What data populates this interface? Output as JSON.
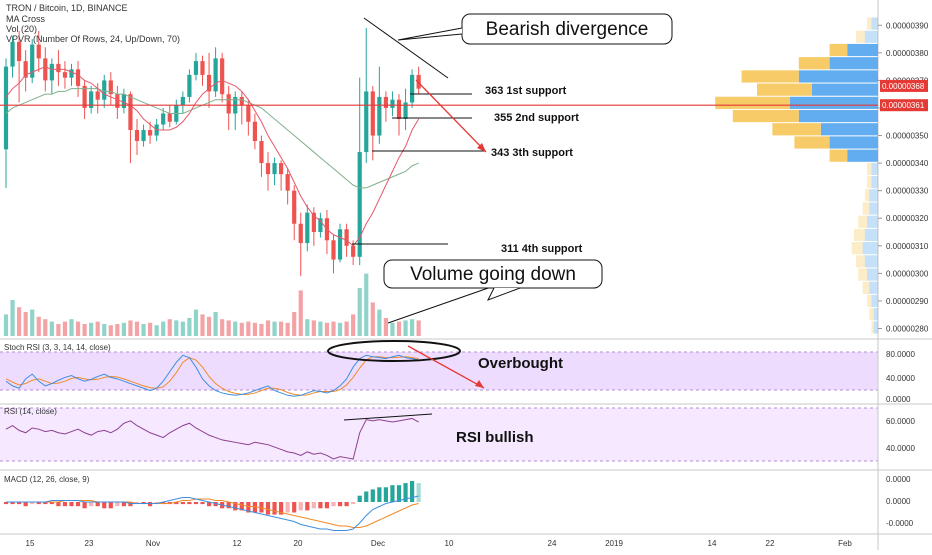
{
  "header": {
    "title": "TRON / Bitcoin, 1D, BINANCE",
    "indicators": [
      "MA Cross",
      "Vol (20)",
      "VPVR (Number Of Rows, 24, Up/Down, 70)"
    ]
  },
  "annotations": {
    "bearish": "Bearish divergence",
    "volume": "Volume going down",
    "overbought": "Overbought",
    "rsi_bullish": "RSI bullish",
    "supports": [
      {
        "label": "363 1st support",
        "value": 3.63e-06
      },
      {
        "label": "355 2nd support",
        "value": 3.55e-06
      },
      {
        "label": "343 3th support",
        "value": 3.43e-06
      },
      {
        "label": "311 4th support",
        "value": 3.11e-06
      }
    ]
  },
  "colors": {
    "up": "#26a69a",
    "down": "#ef5350",
    "vol_up": "#8fd3c9",
    "vol_down": "#f3a3a6",
    "ma_fast": "#e5586a",
    "ma_slow": "#7fb08c",
    "hline": "#e53935",
    "stoch_k": "#3d8fe0",
    "stoch_d": "#f08a28",
    "rsi": "#8e3f8e",
    "band": "#eedcff"
  },
  "price_axis": {
    "ticks": [
      "0.00000390",
      "0.00000380",
      "0.00000370",
      "0.00000360",
      "0.00000350",
      "0.00000340",
      "0.00000330",
      "0.00000320",
      "0.00000310",
      "0.00000300",
      "0.00000290",
      "0.00000280"
    ],
    "tag_high": "0.00000368",
    "tag_line": "0.00000361"
  },
  "stoch_panel": {
    "label": "Stoch RSI (3, 3, 14, 14, close)",
    "ticks": [
      "80.0000",
      "40.0000",
      "0.0000"
    ]
  },
  "rsi_panel": {
    "label": "RSI (14, close)",
    "ticks": [
      "60.0000",
      "40.0000"
    ]
  },
  "macd_panel": {
    "label": "MACD (12, 26, close, 9)",
    "ticks": [
      "0.0000",
      "0.0000",
      "-0.0000"
    ]
  },
  "time_axis": [
    "15",
    "23",
    "Nov",
    "12",
    "20",
    "Dec",
    "10",
    "24",
    "2019",
    "14",
    "22",
    "Feb"
  ],
  "chart_data": {
    "type": "candlestick",
    "ylim": [
      2.78e-06,
      3.93e-06
    ],
    "horizontal_line": 3.61e-06,
    "candles": [
      [
        3.45e-06,
        3.75e-06,
        3.78e-06,
        3.31e-06
      ],
      [
        3.75e-06,
        3.84e-06,
        3.86e-06,
        3.71e-06
      ],
      [
        3.84e-06,
        3.77e-06,
        3.88e-06,
        3.62e-06
      ],
      [
        3.77e-06,
        3.71e-06,
        3.81e-06,
        3.66e-06
      ],
      [
        3.71e-06,
        3.83e-06,
        3.85e-06,
        3.69e-06
      ],
      [
        3.83e-06,
        3.78e-06,
        3.88e-06,
        3.73e-06
      ],
      [
        3.78e-06,
        3.7e-06,
        3.82e-06,
        3.66e-06
      ],
      [
        3.7e-06,
        3.76e-06,
        3.78e-06,
        3.65e-06
      ],
      [
        3.76e-06,
        3.73e-06,
        3.81e-06,
        3.68e-06
      ],
      [
        3.73e-06,
        3.71e-06,
        3.77e-06,
        3.67e-06
      ],
      [
        3.71e-06,
        3.74e-06,
        3.76e-06,
        3.68e-06
      ],
      [
        3.74e-06,
        3.68e-06,
        3.77e-06,
        3.64e-06
      ],
      [
        3.68e-06,
        3.6e-06,
        3.7e-06,
        3.56e-06
      ],
      [
        3.6e-06,
        3.66e-06,
        3.68e-06,
        3.58e-06
      ],
      [
        3.66e-06,
        3.63e-06,
        3.69e-06,
        3.58e-06
      ],
      [
        3.63e-06,
        3.7e-06,
        3.72e-06,
        3.6e-06
      ],
      [
        3.7e-06,
        3.65e-06,
        3.73e-06,
        3.61e-06
      ],
      [
        3.65e-06,
        3.6e-06,
        3.68e-06,
        3.56e-06
      ],
      [
        3.6e-06,
        3.65e-06,
        3.67e-06,
        3.58e-06
      ],
      [
        3.65e-06,
        3.52e-06,
        3.66e-06,
        3.4e-06
      ],
      [
        3.52e-06,
        3.48e-06,
        3.56e-06,
        3.43e-06
      ],
      [
        3.48e-06,
        3.52e-06,
        3.54e-06,
        3.46e-06
      ],
      [
        3.52e-06,
        3.5e-06,
        3.55e-06,
        3.47e-06
      ],
      [
        3.5e-06,
        3.54e-06,
        3.56e-06,
        3.48e-06
      ],
      [
        3.54e-06,
        3.58e-06,
        3.6e-06,
        3.52e-06
      ],
      [
        3.58e-06,
        3.55e-06,
        3.61e-06,
        3.53e-06
      ],
      [
        3.55e-06,
        3.61e-06,
        3.63e-06,
        3.54e-06
      ],
      [
        3.61e-06,
        3.64e-06,
        3.66e-06,
        3.58e-06
      ],
      [
        3.64e-06,
        3.72e-06,
        3.74e-06,
        3.62e-06
      ],
      [
        3.72e-06,
        3.77e-06,
        3.8e-06,
        3.7e-06
      ],
      [
        3.77e-06,
        3.72e-06,
        3.79e-06,
        3.68e-06
      ],
      [
        3.72e-06,
        3.66e-06,
        3.8e-06,
        3.6e-06
      ],
      [
        3.66e-06,
        3.78e-06,
        3.82e-06,
        3.64e-06
      ],
      [
        3.78e-06,
        3.65e-06,
        3.8e-06,
        3.62e-06
      ],
      [
        3.65e-06,
        3.58e-06,
        3.68e-06,
        3.52e-06
      ],
      [
        3.58e-06,
        3.64e-06,
        3.66e-06,
        3.52e-06
      ],
      [
        3.64e-06,
        3.61e-06,
        3.66e-06,
        3.54e-06
      ],
      [
        3.61e-06,
        3.55e-06,
        3.63e-06,
        3.5e-06
      ],
      [
        3.55e-06,
        3.48e-06,
        3.58e-06,
        3.45e-06
      ],
      [
        3.48e-06,
        3.4e-06,
        3.5e-06,
        3.35e-06
      ],
      [
        3.4e-06,
        3.36e-06,
        3.44e-06,
        3.3e-06
      ],
      [
        3.36e-06,
        3.4e-06,
        3.42e-06,
        3.32e-06
      ],
      [
        3.4e-06,
        3.36e-06,
        3.41e-06,
        3.3e-06
      ],
      [
        3.36e-06,
        3.3e-06,
        3.38e-06,
        3.25e-06
      ],
      [
        3.3e-06,
        3.18e-06,
        3.32e-06,
        3.12e-06
      ],
      [
        3.18e-06,
        3.11e-06,
        3.22e-06,
        2.99e-06
      ],
      [
        3.11e-06,
        3.22e-06,
        3.25e-06,
        3.08e-06
      ],
      [
        3.22e-06,
        3.15e-06,
        3.24e-06,
        3.1e-06
      ],
      [
        3.15e-06,
        3.2e-06,
        3.22e-06,
        3.13e-06
      ],
      [
        3.2e-06,
        3.12e-06,
        3.23e-06,
        3.07e-06
      ],
      [
        3.12e-06,
        3.05e-06,
        3.14e-06,
        3e-06
      ],
      [
        3.05e-06,
        3.16e-06,
        3.18e-06,
        3.04e-06
      ],
      [
        3.16e-06,
        3.1e-06,
        3.18e-06,
        3.06e-06
      ],
      [
        3.1e-06,
        3.06e-06,
        3.12e-06,
        3.03e-06
      ],
      [
        3.06e-06,
        3.44e-06,
        3.71e-06,
        3.03e-06
      ],
      [
        3.44e-06,
        3.66e-06,
        3.89e-06,
        3.4e-06
      ],
      [
        3.66e-06,
        3.5e-06,
        3.68e-06,
        3.41e-06
      ],
      [
        3.5e-06,
        3.64e-06,
        3.75e-06,
        3.47e-06
      ],
      [
        3.64e-06,
        3.6e-06,
        3.66e-06,
        3.55e-06
      ],
      [
        3.6e-06,
        3.63e-06,
        3.66e-06,
        3.57e-06
      ],
      [
        3.63e-06,
        3.56e-06,
        3.65e-06,
        3.5e-06
      ],
      [
        3.56e-06,
        3.62e-06,
        3.67e-06,
        3.52e-06
      ],
      [
        3.62e-06,
        3.72e-06,
        3.74e-06,
        3.6e-06
      ],
      [
        3.72e-06,
        3.67e-06,
        3.75e-06,
        3.65e-06
      ]
    ],
    "volume": [
      18,
      30,
      24,
      20,
      22,
      16,
      14,
      12,
      10,
      12,
      14,
      12,
      10,
      11,
      12,
      10,
      9,
      10,
      11,
      13,
      12,
      10,
      11,
      9,
      12,
      14,
      13,
      12,
      15,
      22,
      18,
      16,
      20,
      14,
      13,
      12,
      11,
      12,
      11,
      10,
      13,
      12,
      12,
      11,
      20,
      38,
      14,
      13,
      12,
      11,
      12,
      11,
      12,
      18,
      40,
      52,
      28,
      22,
      15,
      11,
      12,
      13,
      14,
      13
    ],
    "ma_fast": [
      3.64e-06,
      3.67e-06,
      3.69e-06,
      3.72e-06,
      3.73e-06,
      3.74e-06,
      3.75e-06,
      3.74e-06,
      3.74e-06,
      3.74e-06,
      3.73e-06,
      3.72e-06,
      3.7e-06,
      3.69e-06,
      3.67e-06,
      3.65e-06,
      3.64e-06,
      3.63e-06,
      3.62e-06,
      3.61e-06,
      3.59e-06,
      3.56e-06,
      3.54e-06,
      3.52e-06,
      3.52e-06,
      3.52e-06,
      3.53e-06,
      3.55e-06,
      3.58e-06,
      3.62e-06,
      3.65e-06,
      3.67e-06,
      3.69e-06,
      3.7e-06,
      3.69e-06,
      3.68e-06,
      3.66e-06,
      3.63e-06,
      3.59e-06,
      3.55e-06,
      3.5e-06,
      3.46e-06,
      3.42e-06,
      3.38e-06,
      3.33e-06,
      3.28e-06,
      3.24e-06,
      3.21e-06,
      3.19e-06,
      3.16e-06,
      3.14e-06,
      3.13e-06,
      3.12e-06,
      3.1e-06,
      3.13e-06,
      3.18e-06,
      3.22e-06,
      3.27e-06,
      3.32e-06,
      3.37e-06,
      3.42e-06,
      3.46e-06,
      3.52e-06,
      3.56e-06
    ],
    "ma_slow": [
      3.58e-06,
      3.6e-06,
      3.61e-06,
      3.62e-06,
      3.63e-06,
      3.64e-06,
      3.65e-06,
      3.65e-06,
      3.66e-06,
      3.66e-06,
      3.67e-06,
      3.67e-06,
      3.67e-06,
      3.67e-06,
      3.67e-06,
      3.66e-06,
      3.66e-06,
      3.65e-06,
      3.65e-06,
      3.64e-06,
      3.63e-06,
      3.62e-06,
      3.61e-06,
      3.6e-06,
      3.59e-06,
      3.58e-06,
      3.58e-06,
      3.58e-06,
      3.59e-06,
      3.6e-06,
      3.61e-06,
      3.62e-06,
      3.63e-06,
      3.63e-06,
      3.63e-06,
      3.63e-06,
      3.63e-06,
      3.62e-06,
      3.61e-06,
      3.6e-06,
      3.58e-06,
      3.56e-06,
      3.54e-06,
      3.52e-06,
      3.5e-06,
      3.48e-06,
      3.46e-06,
      3.44e-06,
      3.42e-06,
      3.4e-06,
      3.38e-06,
      3.36e-06,
      3.34e-06,
      3.32e-06,
      3.31e-06,
      3.31e-06,
      3.32e-06,
      3.33e-06,
      3.34e-06,
      3.35e-06,
      3.36e-06,
      3.37e-06,
      3.39e-06,
      3.4e-06
    ],
    "stoch_k": [
      40,
      30,
      25,
      45,
      55,
      40,
      30,
      35,
      42,
      48,
      52,
      45,
      40,
      44,
      50,
      55,
      48,
      45,
      40,
      35,
      30,
      25,
      20,
      25,
      40,
      60,
      80,
      95,
      90,
      70,
      45,
      30,
      20,
      15,
      12,
      10,
      12,
      15,
      20,
      25,
      30,
      20,
      15,
      10,
      8,
      10,
      15,
      20,
      18,
      15,
      20,
      30,
      45,
      70,
      88,
      95,
      92,
      90,
      88,
      92,
      95,
      90,
      88,
      85
    ],
    "stoch_d": [
      45,
      38,
      32,
      35,
      42,
      45,
      40,
      35,
      36,
      40,
      46,
      48,
      45,
      43,
      44,
      48,
      50,
      49,
      45,
      40,
      35,
      30,
      26,
      25,
      28,
      40,
      58,
      80,
      90,
      85,
      70,
      50,
      35,
      25,
      18,
      14,
      12,
      12,
      15,
      20,
      25,
      25,
      22,
      16,
      12,
      10,
      11,
      15,
      18,
      18,
      18,
      22,
      32,
      48,
      68,
      85,
      92,
      92,
      90,
      90,
      91,
      92,
      90,
      88
    ],
    "rsi": [
      55,
      58,
      54,
      52,
      56,
      55,
      53,
      54,
      52,
      51,
      53,
      55,
      52,
      50,
      53,
      54,
      52,
      55,
      60,
      62,
      58,
      55,
      52,
      50,
      48,
      52,
      55,
      58,
      60,
      56,
      53,
      50,
      48,
      46,
      45,
      44,
      43,
      42,
      44,
      43,
      42,
      40,
      38,
      36,
      35,
      33,
      36,
      34,
      35,
      33,
      30,
      32,
      31,
      30,
      52,
      63,
      62,
      63,
      62,
      61,
      62,
      63,
      64,
      61
    ],
    "macd_hist": [
      -1,
      -1,
      -1,
      -2,
      -1,
      -1,
      -1,
      -1,
      -2,
      -2,
      -2,
      -2,
      -3,
      -2,
      -2,
      -3,
      -3,
      -2,
      -2,
      -2,
      -1,
      -1,
      -2,
      -1,
      -1,
      -1,
      -1,
      -1,
      -1,
      -1,
      -1,
      -2,
      -2,
      -3,
      -3,
      -4,
      -4,
      -5,
      -5,
      -5,
      -6,
      -6,
      -6,
      -5,
      -5,
      -4,
      -4,
      -3,
      -3,
      -3,
      -2,
      -2,
      -2,
      -1,
      3,
      5,
      6,
      7,
      7,
      8,
      8,
      9,
      10,
      9
    ],
    "macd_line": [
      0,
      0,
      0,
      0,
      0,
      0,
      0,
      1,
      1,
      1,
      1,
      1,
      0,
      0,
      0,
      0,
      0,
      0,
      0,
      -1,
      -1,
      -1,
      -1,
      -1,
      0,
      1,
      2,
      3,
      3,
      2,
      1,
      0,
      -1,
      -2,
      -3,
      -4,
      -5,
      -6,
      -7,
      -8,
      -9,
      -10,
      -11,
      -12,
      -13,
      -15,
      -16,
      -17,
      -18,
      -18,
      -19,
      -19,
      -19,
      -18,
      -14,
      -9,
      -5,
      -3,
      -1,
      0,
      1,
      2,
      3,
      4
    ],
    "macd_signal": [
      0,
      0,
      0,
      0,
      0,
      0,
      0,
      0,
      0,
      1,
      1,
      1,
      1,
      1,
      0,
      0,
      0,
      0,
      0,
      0,
      -1,
      -1,
      -1,
      -1,
      -1,
      -1,
      0,
      1,
      1,
      2,
      2,
      2,
      1,
      1,
      0,
      -1,
      -2,
      -3,
      -3,
      -4,
      -5,
      -6,
      -7,
      -8,
      -9,
      -10,
      -11,
      -12,
      -13,
      -14,
      -15,
      -16,
      -16,
      -17,
      -17,
      -16,
      -14,
      -12,
      -10,
      -8,
      -6,
      -4,
      -2,
      -1
    ],
    "vpvr": [
      {
        "up": 2,
        "down": 1
      },
      {
        "up": 2,
        "down": 2
      },
      {
        "up": 3,
        "down": 2
      },
      {
        "up": 4,
        "down": 3
      },
      {
        "up": 5,
        "down": 4
      },
      {
        "up": 6,
        "down": 4
      },
      {
        "up": 7,
        "down": 5
      },
      {
        "up": 6,
        "down": 5
      },
      {
        "up": 5,
        "down": 4
      },
      {
        "up": 4,
        "down": 3
      },
      {
        "up": 4,
        "down": 2
      },
      {
        "up": 3,
        "down": 2
      },
      {
        "up": 3,
        "down": 2
      },
      {
        "up": 14,
        "down": 8
      },
      {
        "up": 22,
        "down": 16
      },
      {
        "up": 26,
        "down": 22
      },
      {
        "up": 36,
        "down": 30
      },
      {
        "up": 40,
        "down": 34
      },
      {
        "up": 30,
        "down": 25
      },
      {
        "up": 36,
        "down": 26
      },
      {
        "up": 22,
        "down": 14
      },
      {
        "up": 14,
        "down": 8
      },
      {
        "up": 6,
        "down": 4
      },
      {
        "up": 3,
        "down": 2
      }
    ]
  }
}
